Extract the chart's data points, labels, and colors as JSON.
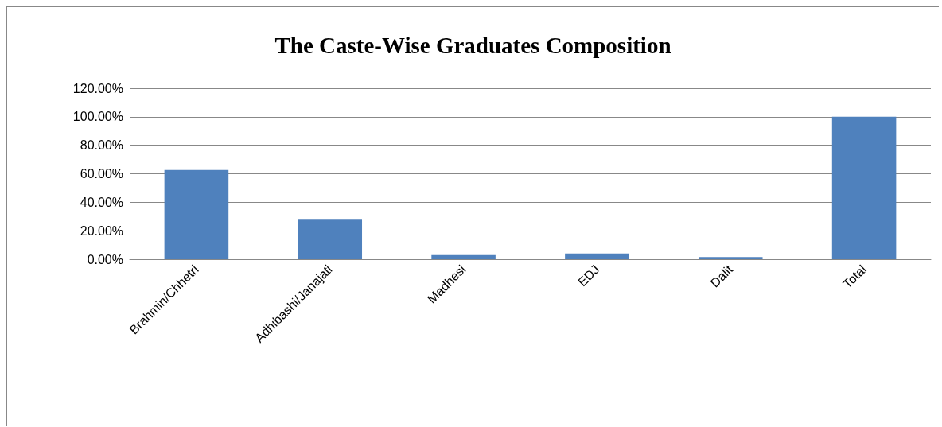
{
  "chart_data": {
    "type": "bar",
    "title": "The Caste-Wise Graduates Composition",
    "categories": [
      "Brahmin/Chhetri",
      "Adhibashi/Janajati",
      "Madhesi",
      "EDJ",
      "Dalit",
      "Total"
    ],
    "values": [
      62.6,
      27.8,
      3.0,
      4.1,
      1.5,
      100
    ],
    "color": "#4f81bd",
    "ylim": [
      0,
      120
    ],
    "yticks": [
      {
        "value": 0,
        "label": "0.00%"
      },
      {
        "value": 20,
        "label": "20.00%"
      },
      {
        "value": 40,
        "label": "40.00%"
      },
      {
        "value": 60,
        "label": "60.00%"
      },
      {
        "value": 80,
        "label": "80.00%"
      },
      {
        "value": 100,
        "label": "100.00%"
      },
      {
        "value": 120,
        "label": "120.00%"
      }
    ],
    "grid": "y"
  }
}
